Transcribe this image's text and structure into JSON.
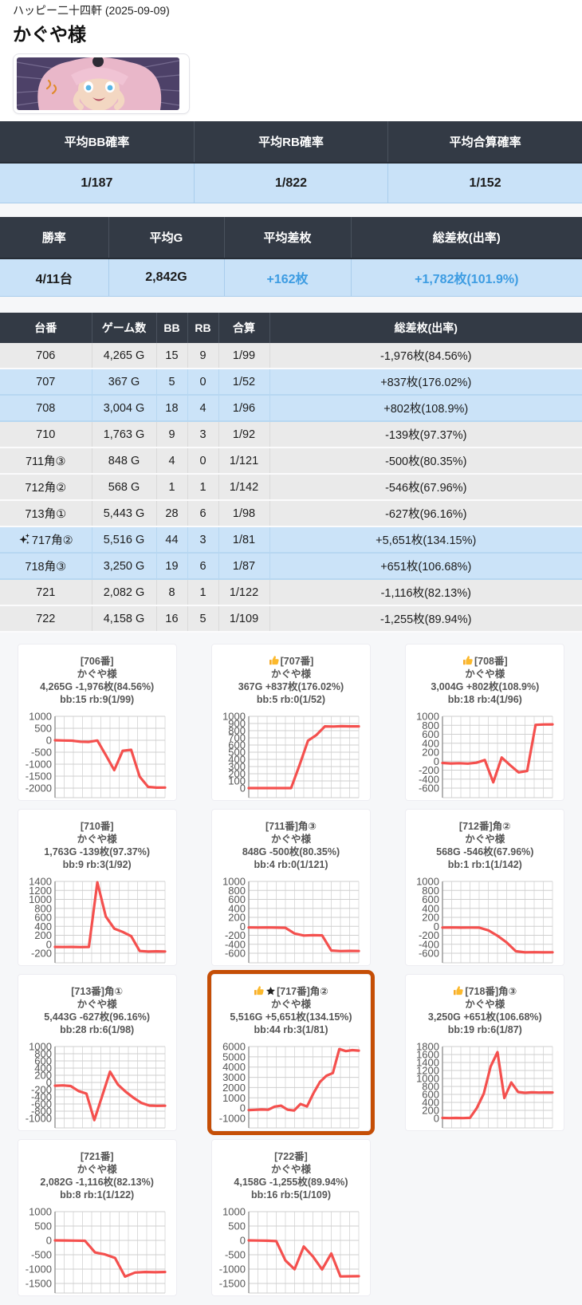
{
  "page": {
    "hall_line": "ハッピー二十四軒 (2025-09-09)",
    "title": "かぐや様"
  },
  "colors": {
    "header_dark": "#333a45",
    "row_blue": "#c9e2f8",
    "row_gray": "#eaeaea",
    "accent_blue": "#3d9ce2",
    "chart_line_red": "#f4504e",
    "highlight_orange": "#c54e06"
  },
  "summary1": {
    "headers": [
      "平均BB確率",
      "平均RB確率",
      "平均合算確率"
    ],
    "values": [
      "1/187",
      "1/822",
      "1/152"
    ]
  },
  "summary2": {
    "headers": [
      "勝率",
      "平均G",
      "平均差枚",
      "総差枚(出率)"
    ],
    "values": [
      "4/11台",
      "2,842G",
      "+162枚",
      "+1,782枚(101.9%)"
    ],
    "accent_flags": [
      false,
      false,
      true,
      true
    ]
  },
  "main_table": {
    "headers": [
      "台番",
      "ゲーム数",
      "BB",
      "RB",
      "合算",
      "総差枚(出率)"
    ],
    "rows": [
      {
        "sparkle": false,
        "tone": "negative",
        "cells": [
          "706",
          "4,265 G",
          "15",
          "9",
          "1/99",
          "-1,976枚(84.56%)"
        ]
      },
      {
        "sparkle": false,
        "tone": "positive",
        "cells": [
          "707",
          "367 G",
          "5",
          "0",
          "1/52",
          "+837枚(176.02%)"
        ]
      },
      {
        "sparkle": false,
        "tone": "positive",
        "cells": [
          "708",
          "3,004 G",
          "18",
          "4",
          "1/96",
          "+802枚(108.9%)"
        ]
      },
      {
        "sparkle": false,
        "tone": "negative",
        "cells": [
          "710",
          "1,763 G",
          "9",
          "3",
          "1/92",
          "-139枚(97.37%)"
        ]
      },
      {
        "sparkle": false,
        "tone": "negative",
        "cells": [
          "711角③",
          "848 G",
          "4",
          "0",
          "1/121",
          "-500枚(80.35%)"
        ]
      },
      {
        "sparkle": false,
        "tone": "negative",
        "cells": [
          "712角②",
          "568 G",
          "1",
          "1",
          "1/142",
          "-546枚(67.96%)"
        ]
      },
      {
        "sparkle": false,
        "tone": "negative",
        "cells": [
          "713角①",
          "5,443 G",
          "28",
          "6",
          "1/98",
          "-627枚(96.16%)"
        ]
      },
      {
        "sparkle": true,
        "tone": "positive",
        "cells": [
          "717角②",
          "5,516 G",
          "44",
          "3",
          "1/81",
          "+5,651枚(134.15%)"
        ]
      },
      {
        "sparkle": false,
        "tone": "positive",
        "cells": [
          "718角③",
          "3,250 G",
          "19",
          "6",
          "1/87",
          "+651枚(106.68%)"
        ]
      },
      {
        "sparkle": false,
        "tone": "negative",
        "cells": [
          "721",
          "2,082 G",
          "8",
          "1",
          "1/122",
          "-1,116枚(82.13%)"
        ]
      },
      {
        "sparkle": false,
        "tone": "negative",
        "cells": [
          "722",
          "4,158 G",
          "16",
          "5",
          "1/109",
          "-1,255枚(89.94%)"
        ]
      }
    ]
  },
  "chart_data": [
    {
      "type": "line",
      "machine": "[706番]",
      "corner": "",
      "thumb": false,
      "star": false,
      "name": "かぐや様",
      "stat": "4,265G -1,976枚(84.56%)",
      "bb": "bb:15 rb:9(1/99)",
      "highlighted": false,
      "yticks": [
        1000,
        500,
        0,
        -500,
        -1000,
        -1500,
        -2000
      ],
      "points": [
        0,
        -10,
        -15,
        -60,
        -70,
        -10,
        -620,
        -1250,
        -440,
        -400,
        -1520,
        -1950,
        -1980,
        -1975
      ]
    },
    {
      "type": "line",
      "machine": "[707番]",
      "corner": "",
      "thumb": true,
      "star": false,
      "name": "かぐや様",
      "stat": "367G +837枚(176.02%)",
      "bb": "bb:5 rb:0(1/52)",
      "highlighted": false,
      "yticks": [
        1000,
        900,
        800,
        700,
        600,
        500,
        400,
        300,
        200,
        100,
        0
      ],
      "points": [
        0,
        0,
        0,
        0,
        0,
        0,
        320,
        660,
        740,
        860,
        858,
        862,
        860,
        860
      ]
    },
    {
      "type": "line",
      "machine": "[708番]",
      "corner": "",
      "thumb": true,
      "star": false,
      "name": "かぐや様",
      "stat": "3,004G +802枚(108.9%)",
      "bb": "bb:18 rb:4(1/96)",
      "highlighted": false,
      "yticks": [
        1000,
        800,
        600,
        400,
        200,
        0,
        -200,
        -400,
        -600
      ],
      "points": [
        -40,
        -50,
        -45,
        -55,
        -35,
        25,
        -470,
        80,
        -90,
        -250,
        -220,
        810,
        818,
        820
      ]
    },
    {
      "type": "line",
      "machine": "[710番]",
      "corner": "",
      "thumb": false,
      "star": false,
      "name": "かぐや様",
      "stat": "1,763G -139枚(97.37%)",
      "bb": "bb:9 rb:3(1/92)",
      "highlighted": false,
      "yticks": [
        1400,
        1200,
        1000,
        800,
        600,
        400,
        200,
        0,
        -200
      ],
      "points": [
        -60,
        -62,
        -60,
        -63,
        -60,
        1380,
        620,
        350,
        275,
        180,
        -150,
        -162,
        -158,
        -160
      ]
    },
    {
      "type": "line",
      "machine": "[711番]",
      "corner": "角③",
      "thumb": false,
      "star": false,
      "name": "かぐや様",
      "stat": "848G -500枚(80.35%)",
      "bb": "bb:4 rb:0(1/121)",
      "highlighted": false,
      "yticks": [
        1000,
        800,
        600,
        400,
        200,
        0,
        -200,
        -400,
        -600
      ],
      "points": [
        -25,
        -28,
        -25,
        -30,
        -32,
        -160,
        -205,
        -198,
        -202,
        -540,
        -552,
        -548,
        -550
      ]
    },
    {
      "type": "line",
      "machine": "[712番]",
      "corner": "角②",
      "thumb": false,
      "star": false,
      "name": "かぐや様",
      "stat": "568G -546枚(67.96%)",
      "bb": "bb:1 rb:1(1/142)",
      "highlighted": false,
      "yticks": [
        1000,
        800,
        600,
        400,
        200,
        0,
        -200,
        -400,
        -600
      ],
      "points": [
        -28,
        -26,
        -30,
        -28,
        -30,
        -90,
        -210,
        -360,
        -555,
        -580,
        -576,
        -580,
        -578
      ]
    },
    {
      "type": "line",
      "machine": "[713番]",
      "corner": "角①",
      "thumb": false,
      "star": false,
      "name": "かぐや様",
      "stat": "5,443G -627枚(96.16%)",
      "bb": "bb:28 rb:6(1/98)",
      "highlighted": false,
      "yticks": [
        1000,
        800,
        600,
        400,
        200,
        0,
        -200,
        -400,
        -600,
        -800,
        -1000
      ],
      "points": [
        -90,
        -82,
        -100,
        -240,
        -310,
        -1050,
        -380,
        300,
        -60,
        -260,
        -430,
        -570,
        -645,
        -650,
        -648
      ]
    },
    {
      "type": "line",
      "machine": "[717番]",
      "corner": "角②",
      "thumb": true,
      "star": true,
      "name": "かぐや様",
      "stat": "5,516G +5,651枚(134.15%)",
      "bb": "bb:44 rb:3(1/81)",
      "highlighted": true,
      "yticks": [
        6000,
        5000,
        4000,
        3000,
        2000,
        1000,
        0,
        -1000
      ],
      "points": [
        -200,
        -170,
        -140,
        -160,
        140,
        240,
        -160,
        -240,
        400,
        160,
        1450,
        2550,
        3150,
        3420,
        5750,
        5560,
        5650,
        5600
      ]
    },
    {
      "type": "line",
      "machine": "[718番]",
      "corner": "角③",
      "thumb": true,
      "star": false,
      "name": "かぐや様",
      "stat": "3,250G +651枚(106.68%)",
      "bb": "bb:19 rb:6(1/87)",
      "highlighted": false,
      "yticks": [
        1800,
        1600,
        1400,
        1200,
        1000,
        800,
        600,
        400,
        200,
        0
      ],
      "points": [
        10,
        6,
        10,
        6,
        12,
        260,
        620,
        1300,
        1660,
        510,
        900,
        660,
        640,
        652,
        646,
        650,
        648
      ]
    },
    {
      "type": "line",
      "machine": "[721番]",
      "corner": "",
      "thumb": false,
      "star": false,
      "name": "かぐや様",
      "stat": "2,082G -1,116枚(82.13%)",
      "bb": "bb:8 rb:1(1/122)",
      "highlighted": false,
      "yticks": [
        1000,
        500,
        0,
        -500,
        -1000,
        -1500
      ],
      "points": [
        0,
        -4,
        -8,
        -14,
        -420,
        -490,
        -610,
        -1260,
        -1120,
        -1100,
        -1108,
        -1100
      ]
    },
    {
      "type": "line",
      "machine": "[722番]",
      "corner": "",
      "thumb": false,
      "star": false,
      "name": "かぐや様",
      "stat": "4,158G -1,255枚(89.94%)",
      "bb": "bb:16 rb:5(1/109)",
      "highlighted": false,
      "yticks": [
        1000,
        500,
        0,
        -500,
        -1000,
        -1500
      ],
      "points": [
        0,
        -6,
        -12,
        -25,
        -700,
        -1005,
        -215,
        -560,
        -1010,
        -455,
        -1255,
        -1250,
        -1248
      ]
    }
  ]
}
